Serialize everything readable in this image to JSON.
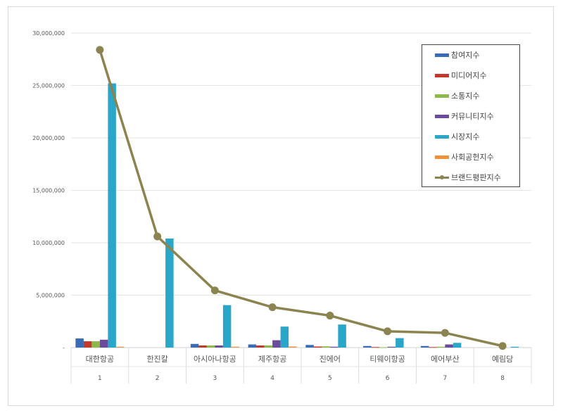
{
  "chart_data": {
    "type": "bar",
    "title": "",
    "xlabel": "",
    "ylabel": "",
    "ylim": [
      0,
      30000000
    ],
    "yticks": [
      "-",
      "5,000,000",
      "10,000,000",
      "15,000,000",
      "20,000,000",
      "25,000,000",
      "30,000,000"
    ],
    "grid": true,
    "legend_position": "top-right",
    "categories": [
      "대한항공",
      "한진칼",
      "아시아나항공",
      "제주항공",
      "진에어",
      "티웨이항공",
      "에어부산",
      "예림당"
    ],
    "ranks": [
      "1",
      "2",
      "3",
      "4",
      "5",
      "6",
      "7",
      "8"
    ],
    "series": [
      {
        "name": "참여지수",
        "kind": "bar",
        "color": "#3a6bb5",
        "values": [
          870000,
          0,
          350000,
          300000,
          250000,
          150000,
          150000,
          0
        ]
      },
      {
        "name": "미디어지수",
        "kind": "bar",
        "color": "#c0392b",
        "values": [
          600000,
          0,
          200000,
          200000,
          100000,
          50000,
          50000,
          0
        ]
      },
      {
        "name": "소통지수",
        "kind": "bar",
        "color": "#8db84a",
        "values": [
          600000,
          0,
          200000,
          200000,
          120000,
          30000,
          80000,
          0
        ]
      },
      {
        "name": "커뮤니티지수",
        "kind": "bar",
        "color": "#6b4c9a",
        "values": [
          750000,
          0,
          200000,
          700000,
          80000,
          80000,
          300000,
          0
        ]
      },
      {
        "name": "시장지수",
        "kind": "bar",
        "color": "#2aa6c8",
        "values": [
          25200000,
          10400000,
          4050000,
          2000000,
          2200000,
          900000,
          450000,
          80000
        ]
      },
      {
        "name": "사회공헌지수",
        "kind": "bar",
        "color": "#f0923a",
        "values": [
          80000,
          0,
          80000,
          100000,
          0,
          0,
          0,
          0
        ]
      },
      {
        "name": "브랜드평판지수",
        "kind": "line",
        "color": "#8c8450",
        "values": [
          28400000,
          10600000,
          5450000,
          3850000,
          3050000,
          1550000,
          1400000,
          150000
        ]
      }
    ]
  }
}
